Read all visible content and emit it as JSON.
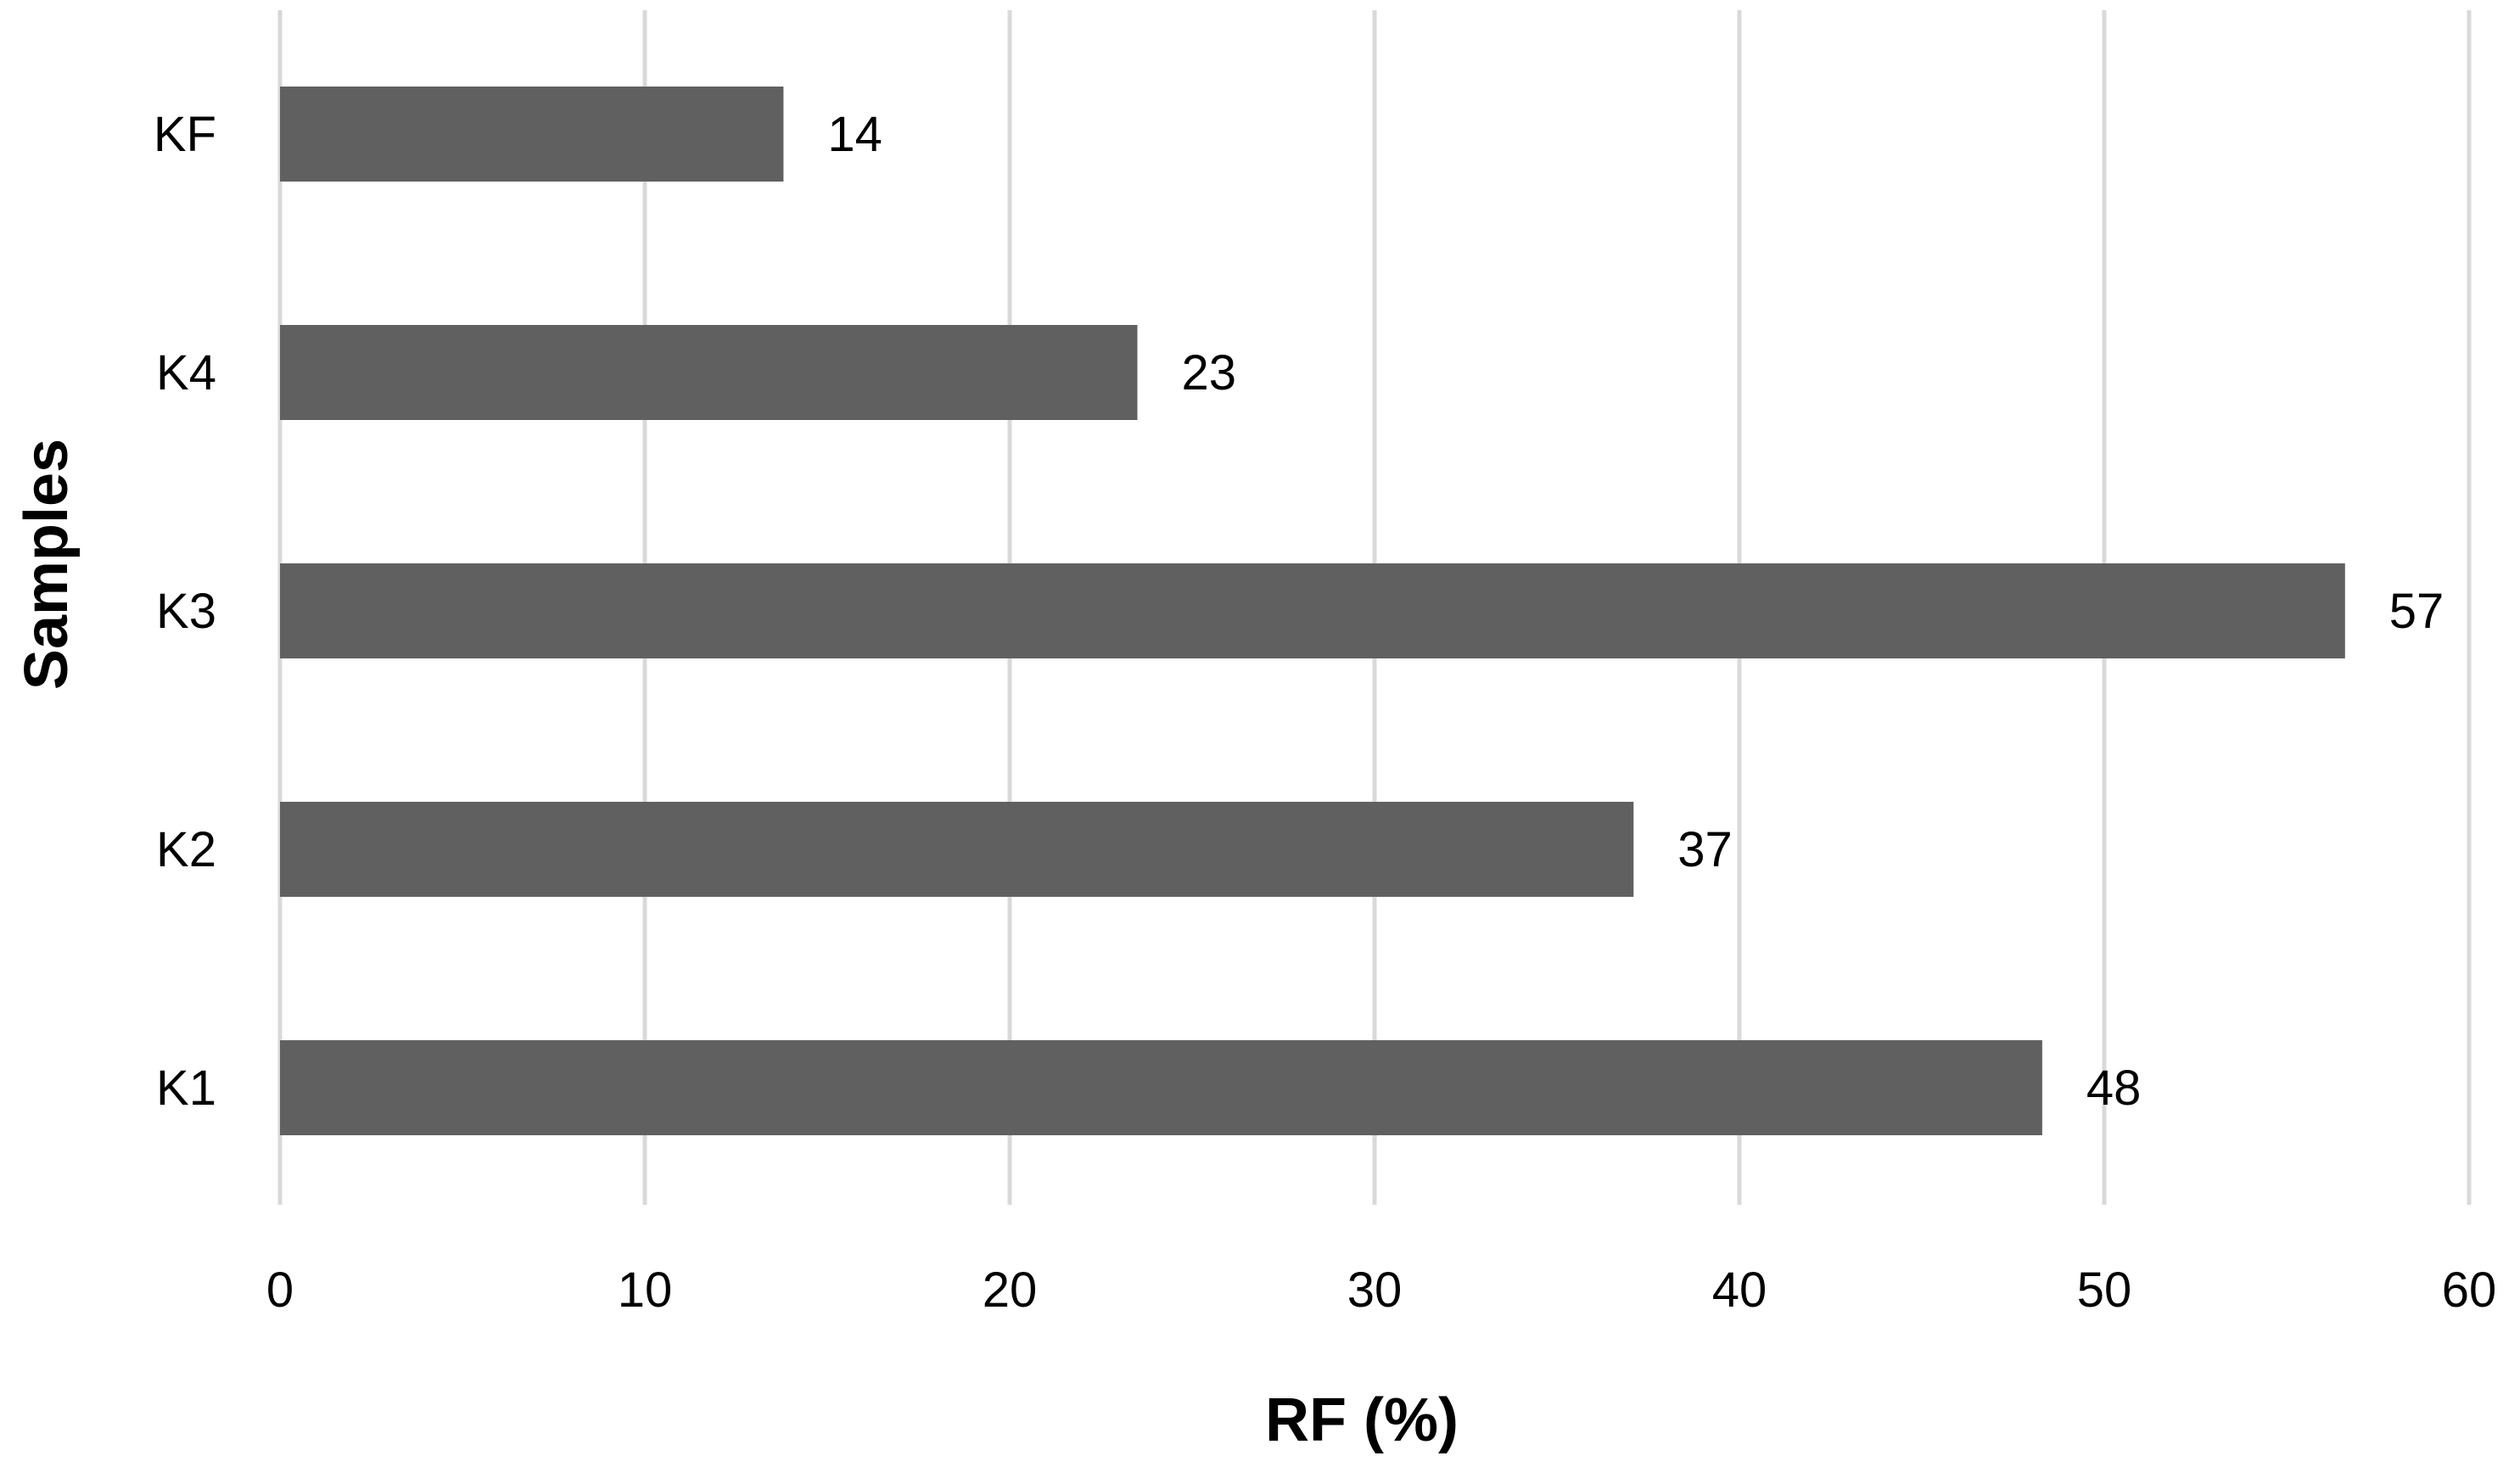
{
  "chart_data": {
    "type": "bar",
    "orientation": "horizontal",
    "categories": [
      "KF",
      "K4",
      "K3",
      "K2",
      "K1"
    ],
    "values": [
      14,
      23,
      57,
      37,
      48
    ],
    "bar_value_estimates": [
      13.8,
      23.5,
      56.6,
      37.1,
      48.3
    ],
    "data_labels": [
      "14",
      "23",
      "57",
      "37",
      "48"
    ],
    "title": "",
    "xlabel": "RF (%)",
    "ylabel": "Samples",
    "xlim": [
      0,
      60
    ],
    "x_ticks": [
      0,
      10,
      20,
      30,
      40,
      50,
      60
    ],
    "x_tick_labels": [
      "0",
      "10",
      "20",
      "30",
      "40",
      "50",
      "60"
    ],
    "grid": "vertical",
    "legend": "none",
    "bar_color": "#606060",
    "grid_color": "#d9d9d9"
  }
}
